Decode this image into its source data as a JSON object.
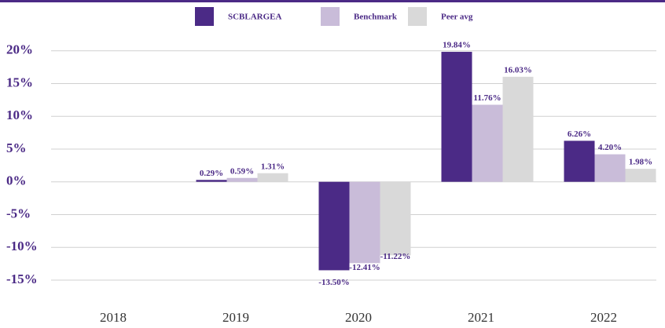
{
  "chart_data": {
    "type": "bar",
    "categories": [
      "2018",
      "2019",
      "2020",
      "2021",
      "2022"
    ],
    "series": [
      {
        "name": "SCBLARGEA",
        "color": "#4b2a86",
        "values": [
          null,
          0.29,
          -13.5,
          19.84,
          6.26
        ],
        "value_labels": [
          null,
          "0.29%",
          "-13.50%",
          "19.84%",
          "6.26%"
        ]
      },
      {
        "name": "Benchmark",
        "color": "#c9bcd9",
        "values": [
          null,
          0.59,
          -12.41,
          11.76,
          4.2
        ],
        "value_labels": [
          null,
          "0.59%",
          "-12.41%",
          "11.76%",
          "4.20%"
        ]
      },
      {
        "name": "Peer avg",
        "color": "#d9d9d9",
        "values": [
          null,
          1.31,
          -11.22,
          16.03,
          1.98
        ],
        "value_labels": [
          null,
          "1.31%",
          "-11.22%",
          "16.03%",
          "1.98%"
        ]
      }
    ],
    "ylim": [
      -18,
      22
    ],
    "yticks": [
      {
        "value": 20,
        "label": "20%"
      },
      {
        "value": 15,
        "label": "15%"
      },
      {
        "value": 10,
        "label": "10%"
      },
      {
        "value": 5,
        "label": "5%"
      },
      {
        "value": 0,
        "label": "0%"
      },
      {
        "value": -5,
        "label": "-5%"
      },
      {
        "value": -10,
        "label": "-10%"
      },
      {
        "value": -15,
        "label": "-15%"
      }
    ],
    "grid": true,
    "legend": "top"
  }
}
